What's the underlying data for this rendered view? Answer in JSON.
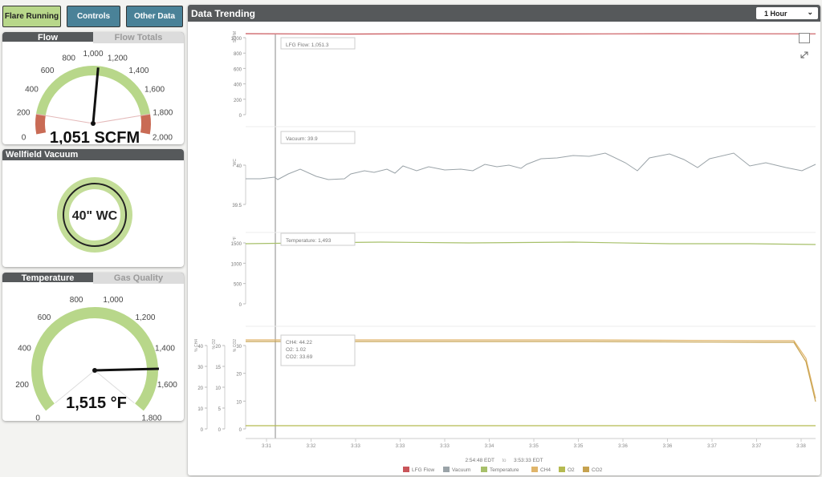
{
  "topbar": {
    "flare_label": "Flare Running",
    "controls_label": "Controls",
    "other_label": "Other Data"
  },
  "flow_card": {
    "tab_active": "Flow",
    "tab_inactive": "Flow Totals",
    "gauge": {
      "min": 0,
      "max": 2000,
      "value": 1051,
      "ticks": [
        0,
        200,
        400,
        600,
        800,
        "1,000",
        "1,200",
        "1,400",
        "1,600",
        "1,800",
        "2,000"
      ],
      "value_text": "1,051 SCFM",
      "low_red_end": 200,
      "high_red_start": 1800
    }
  },
  "vacuum_card": {
    "title": "Wellfield Vacuum",
    "value_text": "40\" WC"
  },
  "temp_card": {
    "tab_active": "Temperature",
    "tab_inactive": "Gas Quality",
    "gauge": {
      "min": 0,
      "max": 1800,
      "value": 1515,
      "ticks": [
        0,
        200,
        400,
        600,
        800,
        "1,000",
        "1,200",
        "1,400",
        "1,600",
        "1,800"
      ],
      "value_text": "1,515 °F"
    }
  },
  "trending": {
    "title": "Data Trending",
    "range_label": "1 Hour",
    "colors": {
      "flow": "#c9555a",
      "vacuum": "#9aa3a8",
      "temperature": "#a7c06a",
      "ch4": "#e0b56a",
      "o2": "#b5ba50",
      "co2": "#c6a24f"
    },
    "tooltips": {
      "flow": "LFG Flow: 1,051.3",
      "vacuum": "Vacuum: 39.9",
      "temperature": "Temperature: 1,493",
      "ch4": "CH4: 44.22",
      "o2": "O2: 1.02",
      "co2": "CO2: 33.69"
    },
    "axes": {
      "flow": {
        "unit": "SCFM",
        "ticks": [
          "1000",
          "800",
          "600",
          "400",
          "200",
          "0"
        ]
      },
      "vacuum": {
        "unit": "\"WC",
        "ticks": [
          "40",
          "39.5"
        ]
      },
      "temperature": {
        "unit": "°F",
        "ticks": [
          "1500",
          "1000",
          "500",
          "0"
        ]
      },
      "ch4": {
        "unit": "% CH4",
        "ticks": [
          "40",
          "30",
          "20",
          "10",
          "0"
        ]
      },
      "o2": {
        "unit": "% O2",
        "ticks": [
          "20",
          "15",
          "10",
          "5",
          "0"
        ]
      },
      "co2": {
        "unit": "% CO2",
        "ticks": [
          "30",
          "20",
          "10",
          "0"
        ]
      }
    },
    "x_ticks": [
      "3:31",
      "3:32",
      "3:33",
      "3:33",
      "3:33",
      "3:34",
      "3:35",
      "3:35",
      "3:36",
      "3:36",
      "3:37",
      "3:37",
      "3:38"
    ],
    "range_start": "2:54:48 EDT",
    "range_sep": "to",
    "range_end": "3:53:33 EDT",
    "legend": [
      "LFG Flow",
      "Vacuum",
      "Temperature",
      "CH4",
      "O2",
      "CO2"
    ]
  },
  "chart_data": {
    "type": "line",
    "title": "Data Trending",
    "x": [
      "3:31",
      "3:32",
      "3:33",
      "3:34",
      "3:35",
      "3:36",
      "3:37",
      "3:38"
    ],
    "series": [
      {
        "name": "LFG Flow",
        "values": [
          1051,
          1051,
          1050,
          1052,
          1051,
          1051,
          1050,
          1051
        ]
      },
      {
        "name": "Vacuum",
        "values": [
          39.85,
          39.88,
          39.92,
          39.98,
          40.02,
          39.99,
          40.02,
          40.0
        ]
      },
      {
        "name": "Temperature",
        "values": [
          1493,
          1500,
          1505,
          1500,
          1502,
          1501,
          1500,
          1493
        ]
      },
      {
        "name": "CH4",
        "values": [
          44.2,
          44.2,
          44.2,
          44.2,
          44.2,
          44.2,
          44.2,
          12
        ]
      },
      {
        "name": "O2",
        "values": [
          1.0,
          1.0,
          1.0,
          1.0,
          1.0,
          1.0,
          1.0,
          1.0
        ]
      },
      {
        "name": "CO2",
        "values": [
          33.7,
          33.7,
          33.7,
          33.7,
          33.7,
          33.7,
          33.7,
          9
        ]
      }
    ]
  }
}
